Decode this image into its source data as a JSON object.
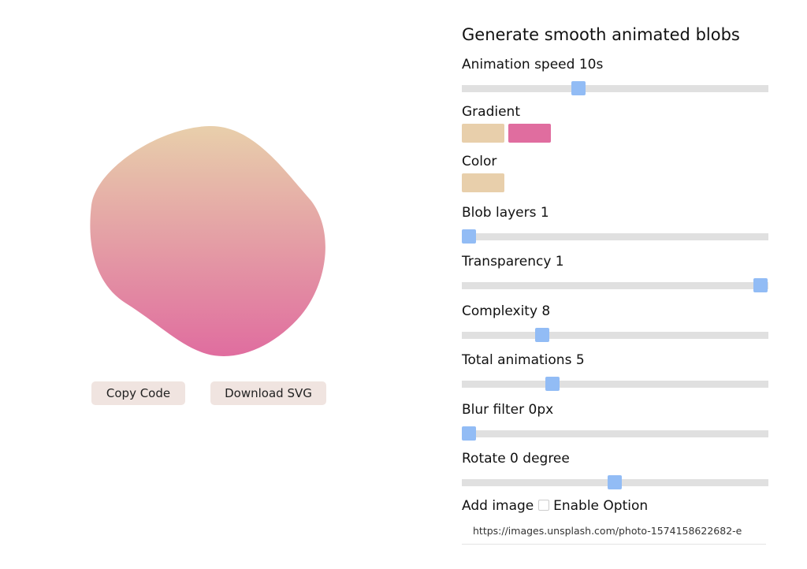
{
  "buttons": {
    "copy": "Copy Code",
    "download": "Download SVG"
  },
  "panel": {
    "title": "Generate smooth animated blobs",
    "animation_speed": "Animation speed 10s",
    "gradient": "Gradient",
    "color": "Color",
    "blob_layers": "Blob layers 1",
    "transparency": "Transparency 1",
    "complexity": "Complexity 8",
    "total_animations": "Total animations 5",
    "blur_filter": "Blur filter 0px",
    "rotate": "Rotate 0 degree",
    "add_image": "Add image",
    "enable_option": "Enable Option",
    "image_url": "https://images.unsplash.com/photo-1574158622682-e"
  }
}
